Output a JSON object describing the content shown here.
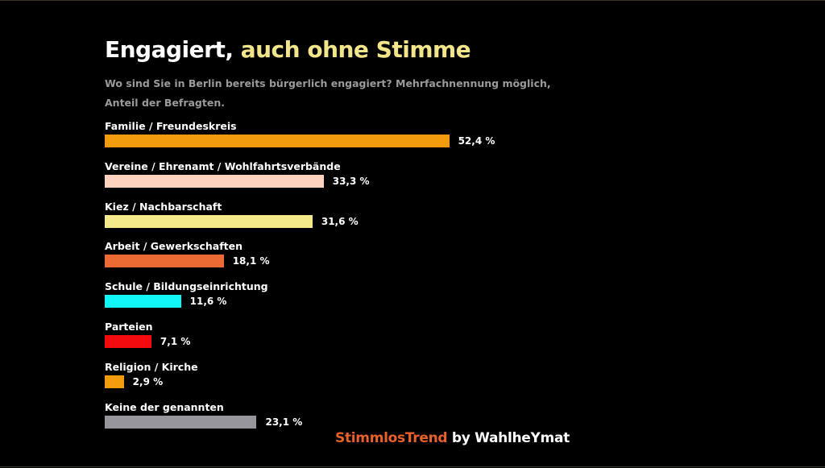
{
  "header": {
    "title_main": "Engagiert,",
    "title_highlight": "auch ohne Stimme",
    "subtitle": "Wo sind Sie in Berlin bereits bürgerlich engagiert? Mehrfachnennung möglich, Anteil der Befragten."
  },
  "chart_data": {
    "type": "bar",
    "orientation": "horizontal",
    "categories": [
      "Familie / Freundeskreis",
      "Vereine / Ehrenamt / Wohlfahrtsverbände",
      "Kiez / Nachbarschaft",
      "Arbeit / Gewerkschaften",
      "Schule / Bildungseinrichtung",
      "Parteien",
      "Religion / Kirche",
      "Keine der genannten"
    ],
    "values": [
      52.4,
      33.3,
      31.6,
      18.1,
      11.6,
      7.1,
      2.9,
      23.1
    ],
    "value_labels": [
      "52,4 %",
      "33,3 %",
      "31,6 %",
      "18,1 %",
      "11,6 %",
      "7,1 %",
      "2,9 %",
      "23,1 %"
    ],
    "colors": [
      "#f29b0c",
      "#fdd2bf",
      "#f3e98a",
      "#ec6a34",
      "#11f4f8",
      "#f20a0c",
      "#f29b0c",
      "#96969a"
    ],
    "unit": "%",
    "grid": false,
    "legend": "none"
  },
  "footer": {
    "brand": "StimmlosTrend",
    "by": "by WahlheYmat"
  },
  "colors": {
    "background": "#000000",
    "title": "#ffffff",
    "title_highlight": "#f3e58a",
    "subtitle": "#9b9b9b",
    "brand": "#e8602c"
  }
}
